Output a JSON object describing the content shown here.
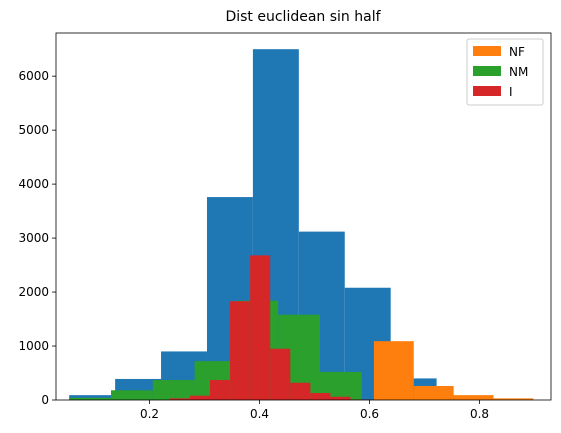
{
  "chart_data": {
    "type": "bar",
    "title": "Dist euclidean sin half",
    "xlabel": "",
    "ylabel": "",
    "xlim": [
      0.03,
      0.93
    ],
    "ylim": [
      0,
      6800
    ],
    "xticks": [
      0.2,
      0.4,
      0.6,
      0.8
    ],
    "xtick_labels": [
      "0.2",
      "0.4",
      "0.6",
      "0.8"
    ],
    "yticks": [
      0,
      1000,
      2000,
      3000,
      4000,
      5000,
      6000
    ],
    "ytick_labels": [
      "0",
      "1000",
      "2000",
      "3000",
      "4000",
      "5000",
      "6000"
    ],
    "grid": false,
    "legend_position": "top-right",
    "series": [
      {
        "color": "#1f77b4",
        "bin_edges": [
          0.054,
          0.1375,
          0.221,
          0.3045,
          0.388,
          0.4715,
          0.555,
          0.6385,
          0.722,
          0.8055,
          0.889
        ],
        "counts": [
          90,
          390,
          900,
          3760,
          6500,
          3120,
          2080,
          400,
          80,
          10
        ]
      },
      {
        "name": "NF",
        "color": "#ff7f0e",
        "bin_edges": [
          0.173,
          0.2455,
          0.318,
          0.3905,
          0.463,
          0.5355,
          0.608,
          0.6805,
          0.753,
          0.8255,
          0.898
        ],
        "counts": [
          0,
          0,
          0,
          0,
          0,
          0,
          1090,
          260,
          90,
          30
        ]
      },
      {
        "name": "NM",
        "color": "#2ca02c",
        "bin_edges": [
          0.054,
          0.13,
          0.206,
          0.282,
          0.358,
          0.434,
          0.51,
          0.586,
          0.662,
          0.738,
          0.814
        ],
        "counts": [
          40,
          180,
          370,
          720,
          1840,
          1580,
          520,
          0,
          0,
          0
        ]
      },
      {
        "name": "I",
        "color": "#d62728",
        "bin_edges": [
          0.237,
          0.2735,
          0.31,
          0.3465,
          0.383,
          0.4195,
          0.456,
          0.4925,
          0.529,
          0.5655,
          0.602
        ],
        "counts": [
          30,
          80,
          370,
          1830,
          2680,
          950,
          320,
          130,
          60,
          10
        ]
      }
    ]
  }
}
